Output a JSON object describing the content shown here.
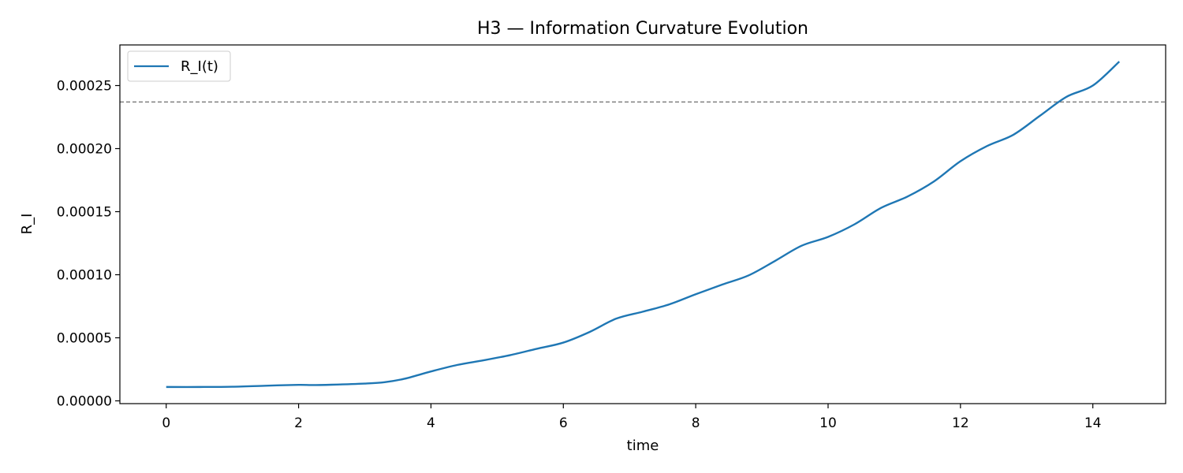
{
  "chart_data": {
    "type": "line",
    "title": "H3 — Information Curvature Evolution",
    "xlabel": "time",
    "ylabel": "R_I",
    "xlim": [
      -0.7,
      15.1
    ],
    "ylim": [
      -2.2e-06,
      0.0002822
    ],
    "grid": false,
    "legend_position": "top-left",
    "x_ticks": [
      0,
      2,
      4,
      6,
      8,
      10,
      12,
      14
    ],
    "y_ticks": [
      0,
      5e-05,
      0.0001,
      0.00015,
      0.0002,
      0.00025
    ],
    "x_tick_labels": [
      "0",
      "2",
      "4",
      "6",
      "8",
      "10",
      "12",
      "14"
    ],
    "y_tick_labels": [
      "0.00000",
      "0.00005",
      "0.00010",
      "0.00015",
      "0.00020",
      "0.00025"
    ],
    "reference_line": {
      "y": 0.000237,
      "color": "#808080",
      "style": "dashed"
    },
    "series": [
      {
        "name": "R_I(t)",
        "color": "#1f77b4",
        "x": [
          0,
          0.5,
          1.0,
          1.5,
          2.0,
          2.2,
          2.5,
          3.0,
          3.3,
          3.6,
          4.0,
          4.4,
          4.8,
          5.2,
          5.6,
          6.0,
          6.4,
          6.8,
          7.2,
          7.6,
          8.0,
          8.4,
          8.8,
          9.2,
          9.6,
          10.0,
          10.4,
          10.8,
          11.2,
          11.6,
          12.0,
          12.4,
          12.8,
          13.2,
          13.6,
          14.0,
          14.4
        ],
        "y": [
          1.1e-05,
          1.1e-05,
          1.12e-05,
          1.2e-05,
          1.27e-05,
          1.25e-05,
          1.28e-05,
          1.37e-05,
          1.48e-05,
          1.75e-05,
          2.33e-05,
          2.85e-05,
          3.22e-05,
          3.63e-05,
          4.13e-05,
          4.62e-05,
          5.47e-05,
          6.52e-05,
          7.07e-05,
          7.65e-05,
          8.45e-05,
          9.22e-05,
          9.95e-05,
          0.000111,
          0.000123,
          0.00013,
          0.00014,
          0.000153,
          0.000162,
          0.000174,
          0.00019,
          0.000202,
          0.000211,
          0.000226,
          0.000241,
          0.00025,
          0.000269
        ]
      }
    ]
  }
}
